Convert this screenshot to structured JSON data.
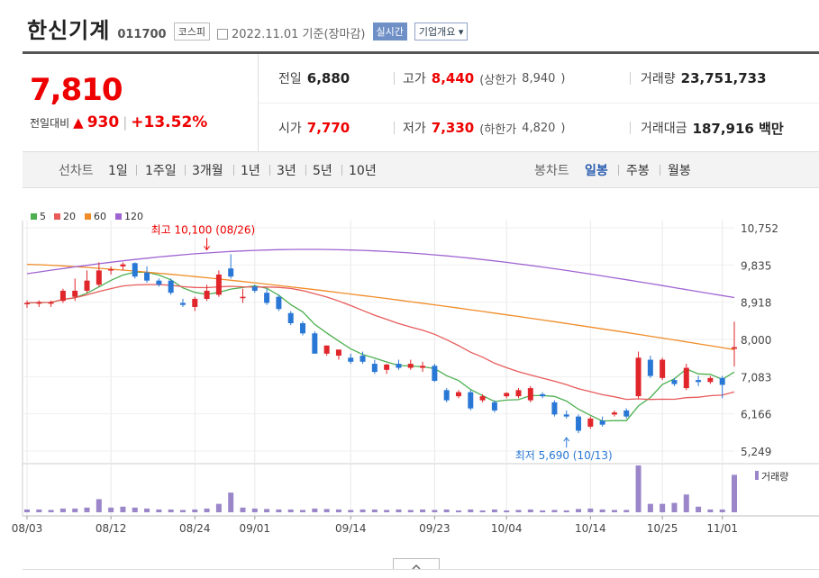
{
  "header": {
    "name": "한신기계",
    "code": "011700",
    "market": "코스피",
    "date_text": "2022.11.01  기준(장마감)",
    "realtime_label": "실시간",
    "info_label": "기업개요"
  },
  "price": {
    "current": "7,810",
    "change_label": "전일대비",
    "change_arrow": "▲",
    "change_value": "930",
    "change_sep": "|",
    "change_pct": "+13.52%"
  },
  "stats": {
    "prev_label": "전일",
    "prev": "6,880",
    "high_label": "고가",
    "high": "8,440",
    "upper_label": "(상한가",
    "upper": "8,940",
    "upper_close": ")",
    "volume_label": "거래량",
    "volume": "23,751,733",
    "open_label": "시가",
    "open": "7,770",
    "low_label": "저가",
    "low": "7,330",
    "lower_label": "(하한가",
    "lower": "4,820",
    "lower_close": ")",
    "amount_label": "거래대금",
    "amount": "187,916 백만"
  },
  "toolbar": {
    "line_label": "선차트",
    "line_periods": [
      "1일",
      "1주일",
      "3개월",
      "1년",
      "3년",
      "5년",
      "10년"
    ],
    "candle_label": "봉차트",
    "candle_periods": [
      "일봉",
      "주봉",
      "월봉"
    ],
    "active_candle": "일봉"
  },
  "colors": {
    "up": "#e0262b",
    "down": "#2a78d6",
    "ma5": "#4caf50",
    "ma20": "#e85b5b",
    "ma60": "#f08c28",
    "ma120": "#a064d2",
    "volume": "#9a86c9"
  },
  "chart_data": {
    "type": "candlestick",
    "legend": [
      {
        "name": "5",
        "color": "#4caf50"
      },
      {
        "name": "20",
        "color": "#e85b5b"
      },
      {
        "name": "60",
        "color": "#f08c28"
      },
      {
        "name": "120",
        "color": "#a064d2"
      }
    ],
    "y_ticks": [
      "10,752",
      "9,835",
      "8,918",
      "8,000",
      "7,083",
      "6,166",
      "5,249"
    ],
    "y_range": [
      5249,
      10752
    ],
    "x_ticks": [
      {
        "index": 0,
        "label": "08/03"
      },
      {
        "index": 7,
        "label": "08/12"
      },
      {
        "index": 14,
        "label": "08/24"
      },
      {
        "index": 19,
        "label": "09/01"
      },
      {
        "index": 27,
        "label": "09/14"
      },
      {
        "index": 34,
        "label": "09/23"
      },
      {
        "index": 40,
        "label": "10/04"
      },
      {
        "index": 47,
        "label": "10/14"
      },
      {
        "index": 53,
        "label": "10/25"
      },
      {
        "index": 58,
        "label": "11/01"
      }
    ],
    "annotations": [
      {
        "text": "최고 10,100 (08/26)",
        "index": 15,
        "value": 10100,
        "pos": "above"
      },
      {
        "text": "최저 5,690 (10/13)",
        "index": 45,
        "value": 5690,
        "pos": "below"
      }
    ],
    "volume_label": "거래량",
    "candles": [
      {
        "o": 8880,
        "h": 8960,
        "l": 8780,
        "c": 8900,
        "v": 0.06
      },
      {
        "o": 8880,
        "h": 8960,
        "l": 8800,
        "c": 8920,
        "v": 0.06
      },
      {
        "o": 8880,
        "h": 8960,
        "l": 8800,
        "c": 8920,
        "v": 0.05
      },
      {
        "o": 8950,
        "h": 9250,
        "l": 8900,
        "c": 9200,
        "v": 0.08
      },
      {
        "o": 9050,
        "h": 9500,
        "l": 8950,
        "c": 9200,
        "v": 0.08
      },
      {
        "o": 9200,
        "h": 9700,
        "l": 9150,
        "c": 9450,
        "v": 0.1
      },
      {
        "o": 9350,
        "h": 9900,
        "l": 9300,
        "c": 9700,
        "v": 0.28
      },
      {
        "o": 9700,
        "h": 9800,
        "l": 9600,
        "c": 9730,
        "v": 0.1
      },
      {
        "o": 9800,
        "h": 9900,
        "l": 9700,
        "c": 9850,
        "v": 0.12
      },
      {
        "o": 9880,
        "h": 9900,
        "l": 9500,
        "c": 9550,
        "v": 0.1
      },
      {
        "o": 9650,
        "h": 9800,
        "l": 9400,
        "c": 9450,
        "v": 0.08
      },
      {
        "o": 9450,
        "h": 9500,
        "l": 9300,
        "c": 9350,
        "v": 0.06
      },
      {
        "o": 9450,
        "h": 9500,
        "l": 9100,
        "c": 9150,
        "v": 0.06
      },
      {
        "o": 8900,
        "h": 9000,
        "l": 8800,
        "c": 8850,
        "v": 0.05
      },
      {
        "o": 8800,
        "h": 9050,
        "l": 8700,
        "c": 9000,
        "v": 0.06
      },
      {
        "o": 9000,
        "h": 9350,
        "l": 8950,
        "c": 9200,
        "v": 0.08
      },
      {
        "o": 9100,
        "h": 9700,
        "l": 9050,
        "c": 9600,
        "v": 0.18
      },
      {
        "o": 9750,
        "h": 10100,
        "l": 9500,
        "c": 9550,
        "v": 0.42
      },
      {
        "o": 9050,
        "h": 9250,
        "l": 8900,
        "c": 9050,
        "v": 0.1
      },
      {
        "o": 9300,
        "h": 9350,
        "l": 9150,
        "c": 9200,
        "v": 0.08
      },
      {
        "o": 9150,
        "h": 9250,
        "l": 8850,
        "c": 8900,
        "v": 0.07
      },
      {
        "o": 9050,
        "h": 9100,
        "l": 8700,
        "c": 8750,
        "v": 0.06
      },
      {
        "o": 8650,
        "h": 8700,
        "l": 8350,
        "c": 8400,
        "v": 0.06
      },
      {
        "o": 8400,
        "h": 8450,
        "l": 8100,
        "c": 8150,
        "v": 0.05
      },
      {
        "o": 8150,
        "h": 8200,
        "l": 7650,
        "c": 7650,
        "v": 0.08
      },
      {
        "o": 7650,
        "h": 7850,
        "l": 7600,
        "c": 7850,
        "v": 0.07
      },
      {
        "o": 7600,
        "h": 7750,
        "l": 7500,
        "c": 7750,
        "v": 0.06
      },
      {
        "o": 7550,
        "h": 7650,
        "l": 7400,
        "c": 7450,
        "v": 0.05
      },
      {
        "o": 7600,
        "h": 7700,
        "l": 7400,
        "c": 7450,
        "v": 0.06
      },
      {
        "o": 7400,
        "h": 7500,
        "l": 7150,
        "c": 7200,
        "v": 0.06
      },
      {
        "o": 7250,
        "h": 7400,
        "l": 7150,
        "c": 7380,
        "v": 0.05
      },
      {
        "o": 7400,
        "h": 7500,
        "l": 7250,
        "c": 7300,
        "v": 0.06
      },
      {
        "o": 7300,
        "h": 7500,
        "l": 7250,
        "c": 7400,
        "v": 0.05
      },
      {
        "o": 7300,
        "h": 7450,
        "l": 7200,
        "c": 7350,
        "v": 0.06
      },
      {
        "o": 7350,
        "h": 7400,
        "l": 6950,
        "c": 6980,
        "v": 0.05
      },
      {
        "o": 6750,
        "h": 6800,
        "l": 6450,
        "c": 6500,
        "v": 0.06
      },
      {
        "o": 6600,
        "h": 6750,
        "l": 6550,
        "c": 6700,
        "v": 0.04
      },
      {
        "o": 6700,
        "h": 6750,
        "l": 6250,
        "c": 6300,
        "v": 0.06
      },
      {
        "o": 6500,
        "h": 6650,
        "l": 6450,
        "c": 6600,
        "v": 0.04
      },
      {
        "o": 6450,
        "h": 6500,
        "l": 6200,
        "c": 6250,
        "v": 0.06
      },
      {
        "o": 6600,
        "h": 6700,
        "l": 6550,
        "c": 6680,
        "v": 0.04
      },
      {
        "o": 6600,
        "h": 6800,
        "l": 6550,
        "c": 6750,
        "v": 0.05
      },
      {
        "o": 6500,
        "h": 6850,
        "l": 6450,
        "c": 6800,
        "v": 0.06
      },
      {
        "o": 6650,
        "h": 6700,
        "l": 6550,
        "c": 6600,
        "v": 0.04
      },
      {
        "o": 6450,
        "h": 6500,
        "l": 6100,
        "c": 6150,
        "v": 0.05
      },
      {
        "o": 6150,
        "h": 6250,
        "l": 6050,
        "c": 6100,
        "v": 0.04
      },
      {
        "o": 6100,
        "h": 6150,
        "l": 5690,
        "c": 5750,
        "v": 0.07
      },
      {
        "o": 5850,
        "h": 6100,
        "l": 5800,
        "c": 6050,
        "v": 0.08
      },
      {
        "o": 6000,
        "h": 6100,
        "l": 5850,
        "c": 5900,
        "v": 0.06
      },
      {
        "o": 6150,
        "h": 6250,
        "l": 6100,
        "c": 6200,
        "v": 0.05
      },
      {
        "o": 6250,
        "h": 6300,
        "l": 6050,
        "c": 6100,
        "v": 0.05
      },
      {
        "o": 6600,
        "h": 7700,
        "l": 6550,
        "c": 7550,
        "v": 1.0
      },
      {
        "o": 7500,
        "h": 7600,
        "l": 7050,
        "c": 7100,
        "v": 0.18
      },
      {
        "o": 7050,
        "h": 7550,
        "l": 7000,
        "c": 7500,
        "v": 0.18
      },
      {
        "o": 7000,
        "h": 7050,
        "l": 6850,
        "c": 6900,
        "v": 0.2
      },
      {
        "o": 6800,
        "h": 7400,
        "l": 6750,
        "c": 7300,
        "v": 0.38
      },
      {
        "o": 7000,
        "h": 7100,
        "l": 6850,
        "c": 6950,
        "v": 0.12
      },
      {
        "o": 6950,
        "h": 7100,
        "l": 6900,
        "c": 7050,
        "v": 0.06
      },
      {
        "o": 7050,
        "h": 7100,
        "l": 6550,
        "c": 6880,
        "v": 0.06
      },
      {
        "o": 7770,
        "h": 8440,
        "l": 7330,
        "c": 7810,
        "v": 0.8
      }
    ]
  }
}
